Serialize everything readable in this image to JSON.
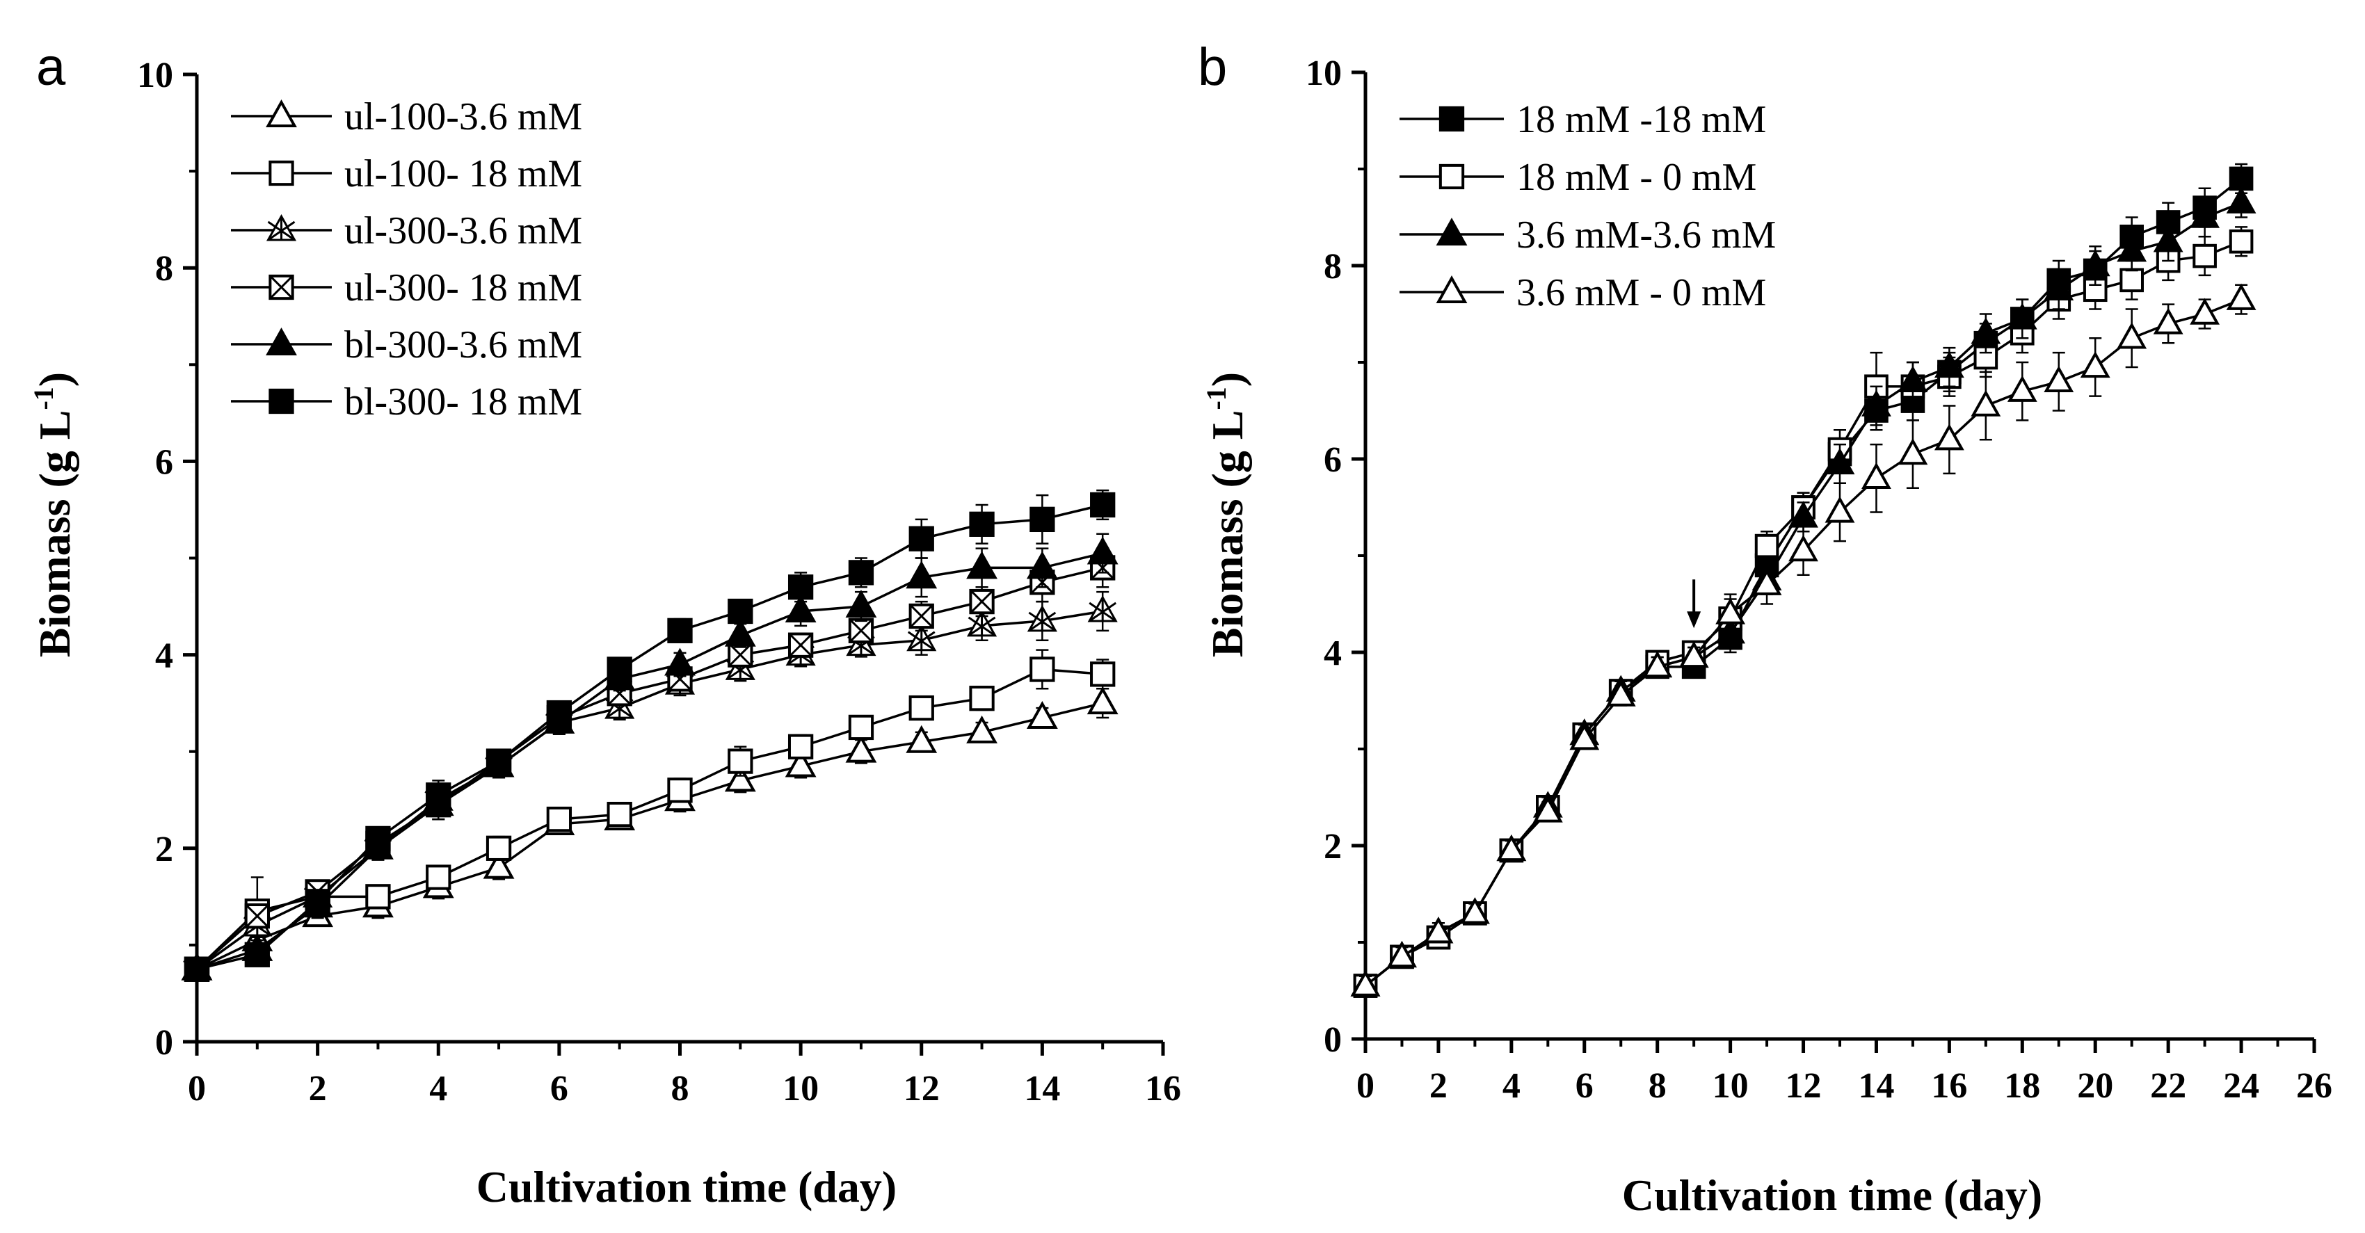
{
  "chart_data": [
    {
      "panel_label": "a",
      "type": "line",
      "xlabel": "Cultivation time (day)",
      "ylabel": "Biomass (g L",
      "ylabel_sup": "-1",
      "ylabel_close": ")",
      "xlim": [
        0,
        16
      ],
      "ylim": [
        0,
        10
      ],
      "xticks": [
        0,
        2,
        4,
        6,
        8,
        10,
        12,
        14,
        16
      ],
      "yticks": [
        0,
        2,
        4,
        6,
        8,
        10
      ],
      "legend_position": "top-left",
      "x": [
        0,
        1,
        2,
        3,
        4,
        5,
        6,
        7,
        8,
        9,
        10,
        11,
        12,
        13,
        14,
        15
      ],
      "series": [
        {
          "name": "ul-100-3.6 mM",
          "marker": "triangle-open",
          "values": [
            0.75,
            1.05,
            1.3,
            1.4,
            1.6,
            1.8,
            2.25,
            2.3,
            2.5,
            2.7,
            2.85,
            3.0,
            3.1,
            3.2,
            3.35,
            3.5
          ],
          "err": [
            0.1,
            0.15,
            0.1,
            0.12,
            0.12,
            0.12,
            0.1,
            0.1,
            0.12,
            0.12,
            0.12,
            0.12,
            0.1,
            0.1,
            0.1,
            0.15
          ]
        },
        {
          "name": "ul-100- 18 mM",
          "marker": "square-open",
          "values": [
            0.75,
            1.35,
            1.5,
            1.5,
            1.7,
            2.0,
            2.3,
            2.35,
            2.6,
            2.9,
            3.05,
            3.25,
            3.45,
            3.55,
            3.85,
            3.8
          ],
          "err": [
            0.1,
            0.35,
            0.1,
            0.1,
            0.12,
            0.12,
            0.1,
            0.1,
            0.12,
            0.15,
            0.12,
            0.12,
            0.1,
            0.12,
            0.2,
            0.15
          ]
        },
        {
          "name": "ul-300-3.6 mM",
          "marker": "star-open",
          "values": [
            0.75,
            1.2,
            1.5,
            2.0,
            2.5,
            2.85,
            3.3,
            3.45,
            3.7,
            3.85,
            4.0,
            4.1,
            4.15,
            4.3,
            4.35,
            4.45
          ],
          "err": [
            0.1,
            0.12,
            0.12,
            0.12,
            0.15,
            0.12,
            0.12,
            0.12,
            0.12,
            0.12,
            0.12,
            0.12,
            0.15,
            0.15,
            0.2,
            0.2
          ]
        },
        {
          "name": "ul-300- 18 mM",
          "marker": "square-x",
          "values": [
            0.75,
            1.3,
            1.55,
            2.05,
            2.45,
            2.9,
            3.35,
            3.6,
            3.75,
            4.0,
            4.1,
            4.25,
            4.4,
            4.55,
            4.75,
            4.9
          ],
          "err": [
            0.1,
            0.12,
            0.12,
            0.12,
            0.15,
            0.12,
            0.12,
            0.12,
            0.12,
            0.12,
            0.12,
            0.12,
            0.15,
            0.15,
            0.2,
            0.2
          ]
        },
        {
          "name": "bl-300-3.6 mM",
          "marker": "triangle-filled",
          "values": [
            0.75,
            0.95,
            1.4,
            2.0,
            2.45,
            2.85,
            3.3,
            3.75,
            3.9,
            4.2,
            4.45,
            4.5,
            4.8,
            4.9,
            4.9,
            5.05
          ],
          "err": [
            0.1,
            0.1,
            0.12,
            0.12,
            0.15,
            0.12,
            0.12,
            0.12,
            0.12,
            0.12,
            0.15,
            0.15,
            0.2,
            0.2,
            0.2,
            0.2
          ]
        },
        {
          "name": "bl-300- 18 mM",
          "marker": "square-filled",
          "values": [
            0.75,
            0.9,
            1.45,
            2.1,
            2.55,
            2.9,
            3.4,
            3.85,
            4.25,
            4.45,
            4.7,
            4.85,
            5.2,
            5.35,
            5.4,
            5.55
          ],
          "err": [
            0.1,
            0.1,
            0.12,
            0.12,
            0.15,
            0.12,
            0.12,
            0.12,
            0.12,
            0.12,
            0.15,
            0.15,
            0.2,
            0.2,
            0.25,
            0.15
          ]
        }
      ]
    },
    {
      "panel_label": "b",
      "type": "line",
      "xlabel": "Cultivation time (day)",
      "ylabel": "Biomass (g L",
      "ylabel_sup": "-1",
      "ylabel_close": ")",
      "xlim": [
        0,
        26
      ],
      "ylim": [
        0,
        10
      ],
      "xticks": [
        0,
        2,
        4,
        6,
        8,
        10,
        12,
        14,
        16,
        18,
        20,
        22,
        24,
        26
      ],
      "yticks": [
        0,
        2,
        4,
        6,
        8,
        10
      ],
      "legend_position": "top-left",
      "arrow_at": {
        "x": 9,
        "y": 4.25
      },
      "x": [
        0,
        1,
        2,
        3,
        4,
        5,
        6,
        7,
        8,
        9,
        10,
        11,
        12,
        13,
        14,
        15,
        16,
        17,
        18,
        19,
        20,
        21,
        22,
        23,
        24
      ],
      "series": [
        {
          "name": "18 mM -18 mM",
          "marker": "square-filled",
          "values": [
            0.55,
            0.85,
            1.05,
            1.3,
            1.95,
            2.4,
            3.15,
            3.6,
            3.85,
            3.85,
            4.15,
            4.9,
            5.5,
            6.05,
            6.5,
            6.6,
            6.9,
            7.2,
            7.45,
            7.85,
            7.95,
            8.3,
            8.45,
            8.6,
            8.9
          ],
          "err": [
            0.1,
            0.1,
            0.1,
            0.1,
            0.1,
            0.1,
            0.1,
            0.1,
            0.1,
            0.1,
            0.15,
            0.15,
            0.15,
            0.15,
            0.2,
            0.2,
            0.2,
            0.2,
            0.2,
            0.2,
            0.2,
            0.2,
            0.2,
            0.2,
            0.15
          ]
        },
        {
          "name": "18 mM -  0 mM",
          "marker": "square-open",
          "values": [
            0.55,
            0.85,
            1.05,
            1.3,
            1.95,
            2.4,
            3.15,
            3.6,
            3.9,
            4.0,
            4.35,
            5.1,
            5.5,
            6.1,
            6.75,
            6.75,
            6.85,
            7.05,
            7.3,
            7.65,
            7.75,
            7.85,
            8.05,
            8.1,
            8.25
          ],
          "err": [
            0.1,
            0.1,
            0.1,
            0.1,
            0.1,
            0.1,
            0.1,
            0.1,
            0.1,
            0.1,
            0.2,
            0.15,
            0.15,
            0.2,
            0.35,
            0.25,
            0.2,
            0.2,
            0.2,
            0.2,
            0.2,
            0.2,
            0.2,
            0.2,
            0.15
          ]
        },
        {
          "name": "3.6 mM-3.6 mM",
          "marker": "triangle-filled",
          "values": [
            0.55,
            0.85,
            1.1,
            1.3,
            1.95,
            2.4,
            3.15,
            3.6,
            3.85,
            3.95,
            4.2,
            4.75,
            5.4,
            5.95,
            6.55,
            6.8,
            6.95,
            7.3,
            7.45,
            7.75,
            8.0,
            8.15,
            8.25,
            8.5,
            8.65
          ],
          "err": [
            0.1,
            0.1,
            0.1,
            0.1,
            0.1,
            0.1,
            0.1,
            0.1,
            0.1,
            0.1,
            0.15,
            0.15,
            0.15,
            0.2,
            0.2,
            0.2,
            0.2,
            0.2,
            0.2,
            0.2,
            0.2,
            0.2,
            0.2,
            0.2,
            0.15
          ]
        },
        {
          "name": "3.6 mM -  0 mM",
          "marker": "triangle-open",
          "values": [
            0.55,
            0.85,
            1.1,
            1.3,
            1.95,
            2.35,
            3.1,
            3.55,
            3.85,
            3.95,
            4.4,
            4.7,
            5.05,
            5.45,
            5.8,
            6.05,
            6.2,
            6.55,
            6.7,
            6.8,
            6.95,
            7.25,
            7.4,
            7.5,
            7.65
          ],
          "err": [
            0.1,
            0.1,
            0.1,
            0.1,
            0.1,
            0.1,
            0.1,
            0.1,
            0.1,
            0.1,
            0.2,
            0.2,
            0.25,
            0.3,
            0.35,
            0.35,
            0.35,
            0.35,
            0.3,
            0.3,
            0.3,
            0.3,
            0.2,
            0.15,
            0.15
          ]
        }
      ]
    }
  ]
}
